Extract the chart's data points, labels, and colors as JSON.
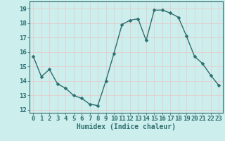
{
  "x": [
    0,
    1,
    2,
    3,
    4,
    5,
    6,
    7,
    8,
    9,
    10,
    11,
    12,
    13,
    14,
    15,
    16,
    17,
    18,
    19,
    20,
    21,
    22,
    23
  ],
  "y": [
    15.7,
    14.3,
    14.8,
    13.8,
    13.5,
    13.0,
    12.8,
    12.4,
    12.3,
    14.0,
    15.9,
    17.9,
    18.2,
    18.3,
    16.8,
    18.9,
    18.9,
    18.7,
    18.4,
    17.1,
    15.7,
    15.2,
    14.4,
    13.7
  ],
  "xlabel": "Humidex (Indice chaleur)",
  "ylabel_ticks": [
    12,
    13,
    14,
    15,
    16,
    17,
    18,
    19
  ],
  "ylim": [
    11.8,
    19.5
  ],
  "xlim": [
    -0.5,
    23.5
  ],
  "bg_color": "#cceeed",
  "line_color": "#2d6e6e",
  "grid_color": "#e8c8c8",
  "marker_size": 2.5,
  "line_width": 1.0,
  "font_size_label": 7,
  "font_size_tick": 6.5
}
